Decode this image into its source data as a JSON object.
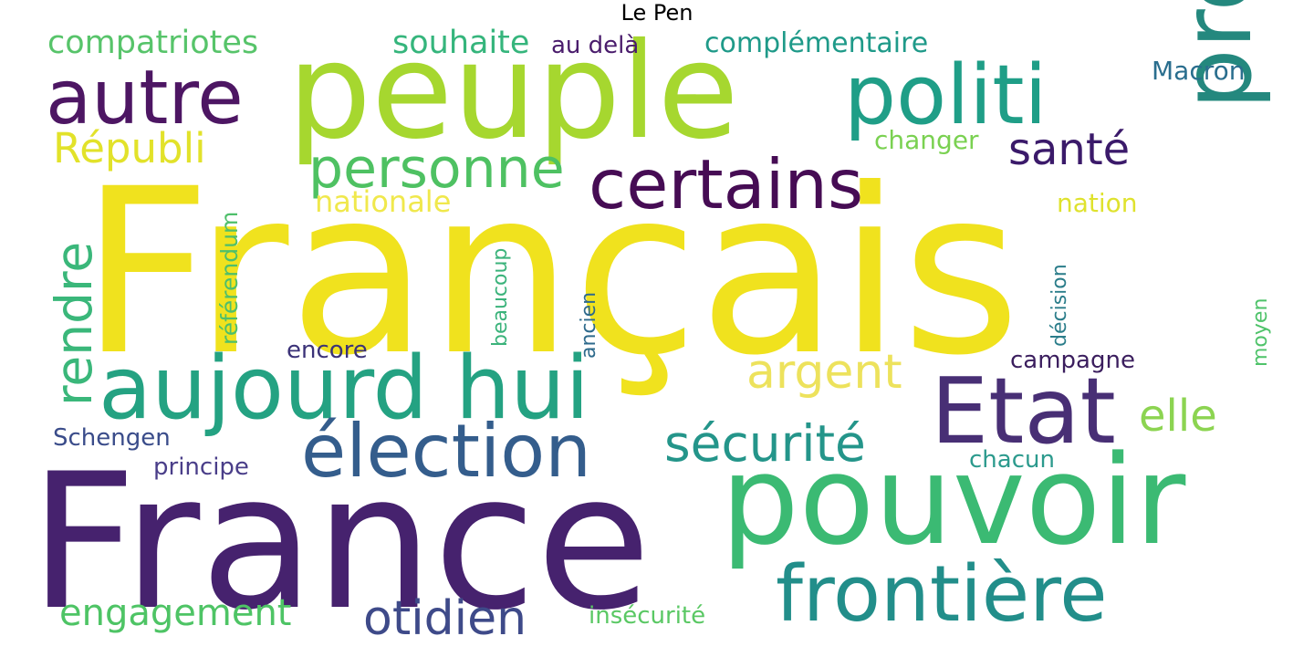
{
  "title": "Le Pen",
  "words": [
    {
      "text": "Français",
      "color": "#f0e21e",
      "orientation": "horizontal"
    },
    {
      "text": "France",
      "color": "#46226e",
      "orientation": "horizontal"
    },
    {
      "text": "peuple",
      "color": "#a6d72f",
      "orientation": "horizontal"
    },
    {
      "text": "pouvoir",
      "color": "#3bba73",
      "orientation": "horizontal"
    },
    {
      "text": "aujourd hui",
      "color": "#24a282",
      "orientation": "horizontal"
    },
    {
      "text": "politi",
      "color": "#1f9e87",
      "orientation": "horizontal"
    },
    {
      "text": "projet",
      "color": "#24887e",
      "orientation": "vertical"
    },
    {
      "text": "Etat",
      "color": "#482f75",
      "orientation": "horizontal"
    },
    {
      "text": "frontière",
      "color": "#228e8a",
      "orientation": "horizontal"
    },
    {
      "text": "élection",
      "color": "#345d8c",
      "orientation": "horizontal"
    },
    {
      "text": "certains",
      "color": "#460c54",
      "orientation": "horizontal"
    },
    {
      "text": "autre",
      "color": "#4d1663",
      "orientation": "horizontal"
    },
    {
      "text": "personne",
      "color": "#4ec162",
      "orientation": "horizontal"
    },
    {
      "text": "sécurité",
      "color": "#24958a",
      "orientation": "horizontal"
    },
    {
      "text": "argent",
      "color": "#ede25c",
      "orientation": "horizontal"
    },
    {
      "text": "otidien",
      "color": "#3e4a89",
      "orientation": "horizontal"
    },
    {
      "text": "rendre",
      "color": "#3ab77a",
      "orientation": "vertical"
    },
    {
      "text": "Républi",
      "color": "#e2e22a",
      "orientation": "horizontal"
    },
    {
      "text": "santé",
      "color": "#3b1a6a",
      "orientation": "horizontal"
    },
    {
      "text": "elle",
      "color": "#8cd451",
      "orientation": "horizontal"
    },
    {
      "text": "engagement",
      "color": "#4ec465",
      "orientation": "horizontal"
    },
    {
      "text": "compatriotes",
      "color": "#57c46a",
      "orientation": "horizontal"
    },
    {
      "text": "souhaite",
      "color": "#35b57c",
      "orientation": "horizontal"
    },
    {
      "text": "nationale",
      "color": "#f0e84c",
      "orientation": "horizontal"
    },
    {
      "text": "complémentaire",
      "color": "#1f9a89",
      "orientation": "horizontal"
    },
    {
      "text": "Macron",
      "color": "#2a6e8e",
      "orientation": "horizontal"
    },
    {
      "text": "changer",
      "color": "#7ad151",
      "orientation": "horizontal"
    },
    {
      "text": "nation",
      "color": "#dfe22e",
      "orientation": "horizontal"
    },
    {
      "text": "au delà",
      "color": "#4a1c6c",
      "orientation": "horizontal"
    },
    {
      "text": "Schengen",
      "color": "#3a4c8a",
      "orientation": "horizontal"
    },
    {
      "text": "principe",
      "color": "#4a3e89",
      "orientation": "horizontal"
    },
    {
      "text": "encore",
      "color": "#3b3278",
      "orientation": "horizontal"
    },
    {
      "text": "campagne",
      "color": "#3b1e5e",
      "orientation": "horizontal"
    },
    {
      "text": "chacun",
      "color": "#2c9a8d",
      "orientation": "horizontal"
    },
    {
      "text": "insécurité",
      "color": "#5ac864",
      "orientation": "horizontal"
    },
    {
      "text": "référendum",
      "color": "#4ebf6b",
      "orientation": "vertical"
    },
    {
      "text": "beaucoup",
      "color": "#3bb37b",
      "orientation": "vertical"
    },
    {
      "text": "ancien",
      "color": "#2e6a8c",
      "orientation": "vertical"
    },
    {
      "text": "décision",
      "color": "#2b7d8a",
      "orientation": "vertical"
    },
    {
      "text": "moyen",
      "color": "#4fc36a",
      "orientation": "vertical"
    }
  ]
}
